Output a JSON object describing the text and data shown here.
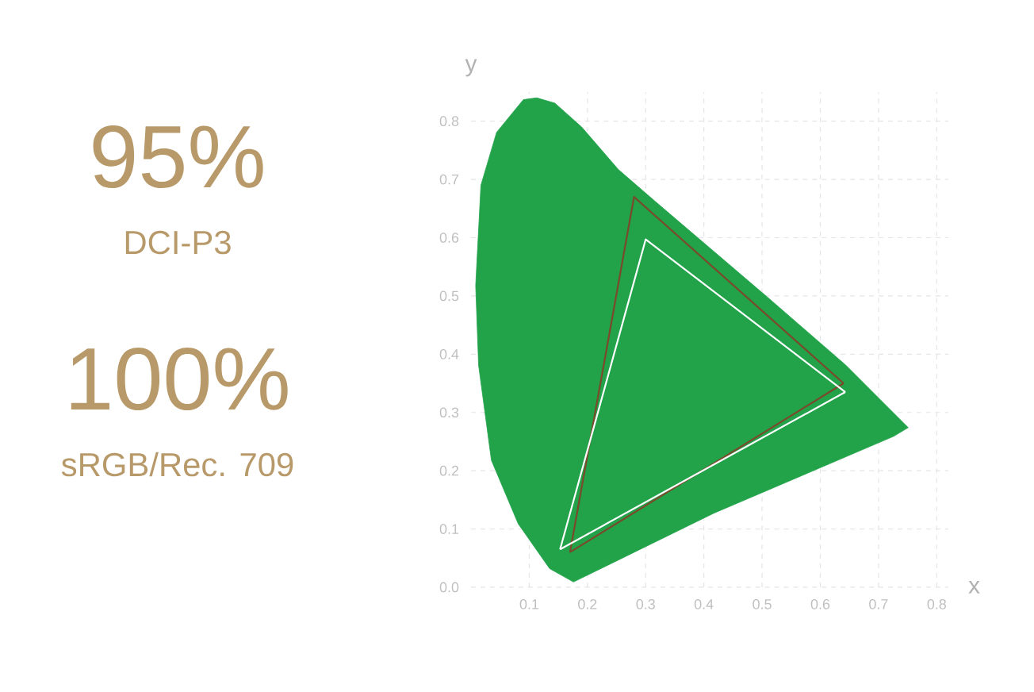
{
  "chart_data": {
    "type": "line",
    "xlabel": "x",
    "ylabel": "y",
    "annotations": [
      "95%",
      "DCI-P3",
      "100%",
      "sRGB/Rec. 709"
    ],
    "xlim": [
      0,
      0.82
    ],
    "ylim": [
      0,
      0.85
    ],
    "xticks": [
      0.1,
      0.2,
      0.3,
      0.4,
      0.5,
      0.6,
      0.7,
      0.8
    ],
    "yticks": [
      {
        "value": 0,
        "label": "0.0"
      },
      0.1,
      0.2,
      0.3,
      0.4,
      0.5,
      0.6,
      0.7,
      0.8
    ],
    "grid": true,
    "line_style": "solid",
    "marker": "none",
    "series": [
      {
        "type": "area",
        "color": "#22a34a",
        "x": [
          0.176,
          0.135,
          0.081,
          0.035,
          0.013,
          0.008,
          0.017,
          0.044,
          0.09,
          0.113,
          0.144,
          0.19,
          0.253,
          0.326,
          0.508,
          0.644,
          0.751,
          0.726,
          0.417,
          0.176
        ],
        "values": [
          0.009,
          0.032,
          0.109,
          0.218,
          0.381,
          0.518,
          0.69,
          0.781,
          0.837,
          0.84,
          0.831,
          0.79,
          0.717,
          0.654,
          0.499,
          0.381,
          0.274,
          0.259,
          0.127,
          0.009
        ]
      },
      {
        "color": "#7a4a2a",
        "x": [
          0.17,
          0.28,
          0.64
        ],
        "values": [
          0.06,
          0.67,
          0.35
        ]
      },
      {
        "color": "#7a4a2a",
        "x": [
          0.17,
          0.64
        ],
        "values": [
          0.06,
          0.35
        ]
      },
      {
        "color": "#ffffff",
        "x": [
          0.153,
          0.3,
          0.643
        ],
        "values": [
          0.065,
          0.597,
          0.335
        ]
      },
      {
        "color": "#ffffff",
        "x": [
          0.153,
          0.643
        ],
        "values": [
          0.065,
          0.335
        ]
      }
    ]
  }
}
